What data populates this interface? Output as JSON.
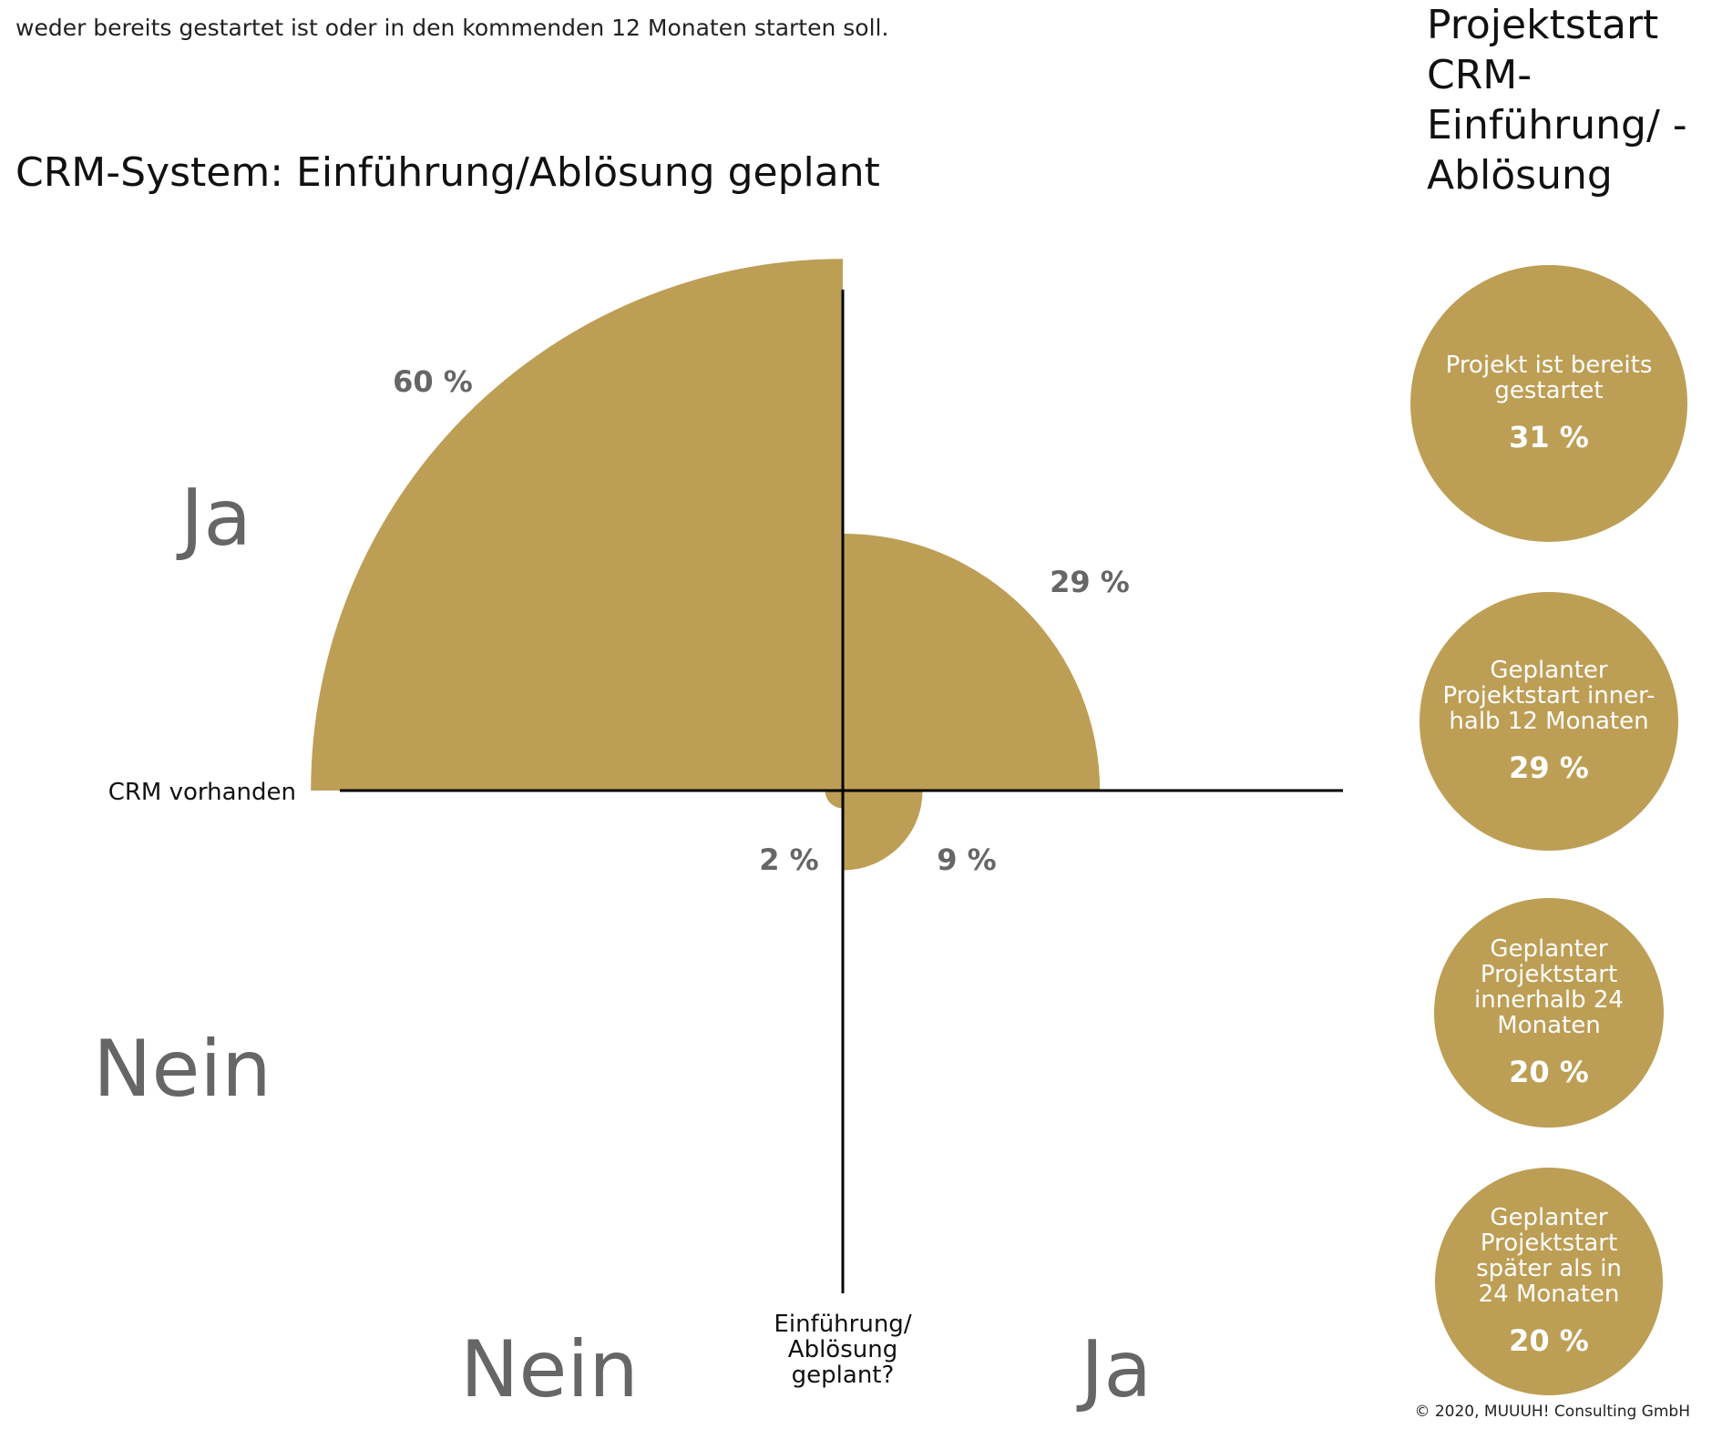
{
  "intro_text": "weder bereits gestartet ist oder in den kommenden 12 Monaten starten soll.",
  "side_title": "Projektstart CRM-Einführung/ -Ablösung",
  "copyright": "© 2020, MUUUH! Consulting GmbH",
  "colors": {
    "gold": "#BD9E55",
    "gray": "#666666",
    "axis": "#000000"
  },
  "chart_data": {
    "type": "pie",
    "title": "CRM-System: Einführung/Ablösung geplant",
    "x_axis_label": "Einführung/ Ablösung geplant?",
    "y_axis_label": "CRM vorhanden",
    "x_categories": [
      "Nein",
      "Ja"
    ],
    "y_categories": [
      "Ja",
      "Nein"
    ],
    "quadrants": [
      {
        "crm": "Ja",
        "planned": "Nein",
        "value": 60,
        "label": "60 %"
      },
      {
        "crm": "Ja",
        "planned": "Ja",
        "value": 29,
        "label": "29 %"
      },
      {
        "crm": "Nein",
        "planned": "Ja",
        "value": 9,
        "label": "9 %"
      },
      {
        "crm": "Nein",
        "planned": "Nein",
        "value": 2,
        "label": "2 %"
      }
    ],
    "breakdown": [
      {
        "label": "Projekt ist bereits gestartet",
        "value": 31,
        "value_label": "31 %"
      },
      {
        "label": "Geplanter Projektstart inner-halb 12 Monaten",
        "value": 29,
        "value_label": "29 %"
      },
      {
        "label": "Geplanter Projektstart innerhalb 24 Monaten",
        "value": 20,
        "value_label": "20 %"
      },
      {
        "label": "Geplanter Projektstart später als in 24 Monaten",
        "value": 20,
        "value_label": "20 %"
      }
    ]
  }
}
